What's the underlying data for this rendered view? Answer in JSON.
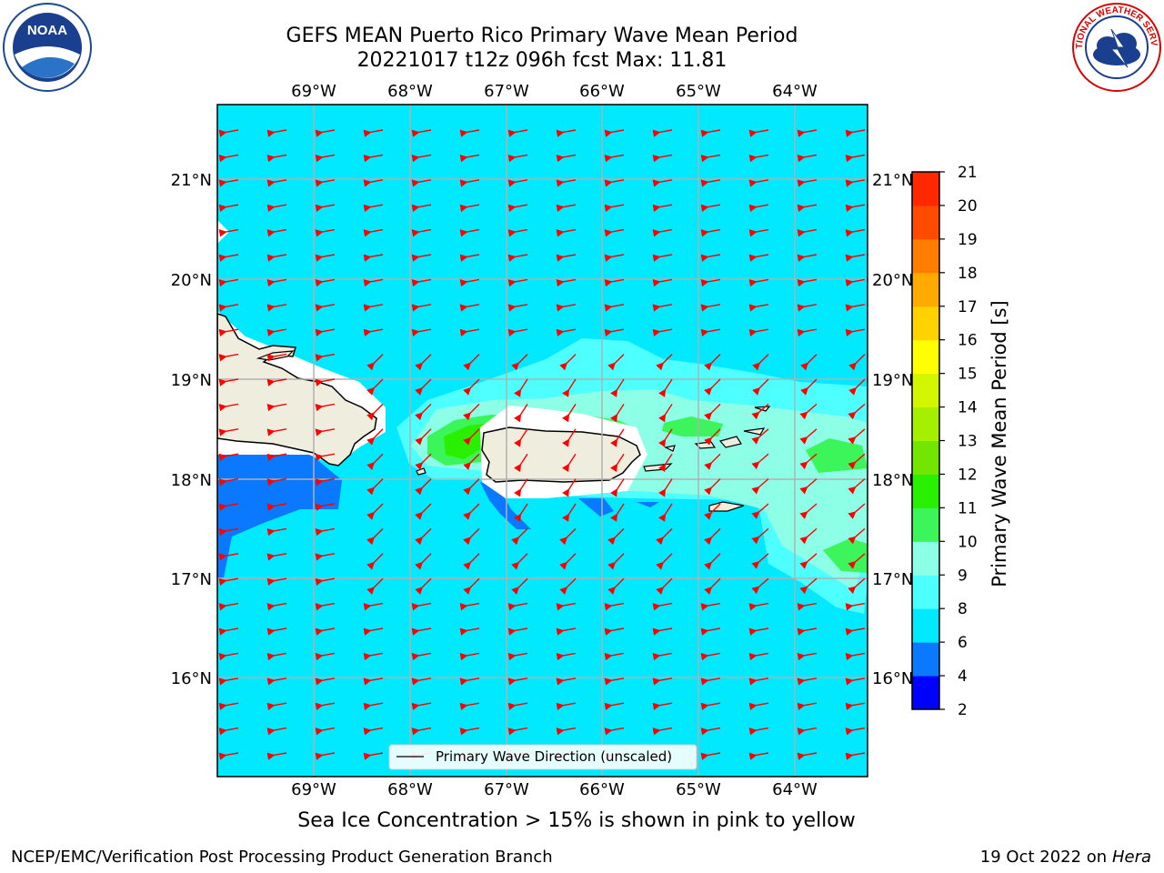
{
  "title_line1": "GEFS MEAN Puerto Rico Primary Wave Mean Period",
  "title_line2": "20221017 t12z 096h fcst   Max: 11.81",
  "subtitle": "Sea Ice Concentration > 15% is shown in pink to yellow",
  "footer_left": "NCEP/EMC/Verification Post Processing Product Generation Branch",
  "footer_right_date": "19 Oct 2022 on ",
  "footer_right_machine": "Hera",
  "legend_label": "Primary Wave Direction (unscaled)",
  "lon_labels": [
    "69°W",
    "68°W",
    "67°W",
    "66°W",
    "65°W",
    "64°W"
  ],
  "lat_labels": [
    "21°N",
    "20°N",
    "19°N",
    "18°N",
    "17°N",
    "16°N"
  ],
  "colorbar": {
    "label": "Primary Wave Mean Period [s]",
    "ticks": [
      "2",
      "4",
      "6",
      "8",
      "9",
      "10",
      "11",
      "12",
      "13",
      "14",
      "15",
      "16",
      "17",
      "18",
      "19",
      "20",
      "21"
    ],
    "colors": [
      "#0000ff",
      "#0a78ff",
      "#00e9ff",
      "#4dffff",
      "#8cffe6",
      "#3cf55a",
      "#28f000",
      "#73e600",
      "#a5f000",
      "#d2f500",
      "#ffff00",
      "#ffd200",
      "#ffaa00",
      "#ff7d00",
      "#ff4b00",
      "#ff2800",
      "#ff0000"
    ]
  },
  "logos": {
    "noaa_text": "NOAA",
    "nws_text": "NATIONAL WEATHER SERVICE"
  },
  "colors": {
    "ocean": "#00e9ff",
    "land": "#efedde",
    "arrow": "#ff0000",
    "grid": "#b0b0b0"
  },
  "map_data": {
    "lon_range": [
      -70.0,
      -63.25
    ],
    "lat_range": [
      15.0,
      21.75
    ],
    "max_period": 11.81,
    "wave_direction": "mostly westward, turning south-westward in the Mona Passage and east of Puerto Rico"
  }
}
